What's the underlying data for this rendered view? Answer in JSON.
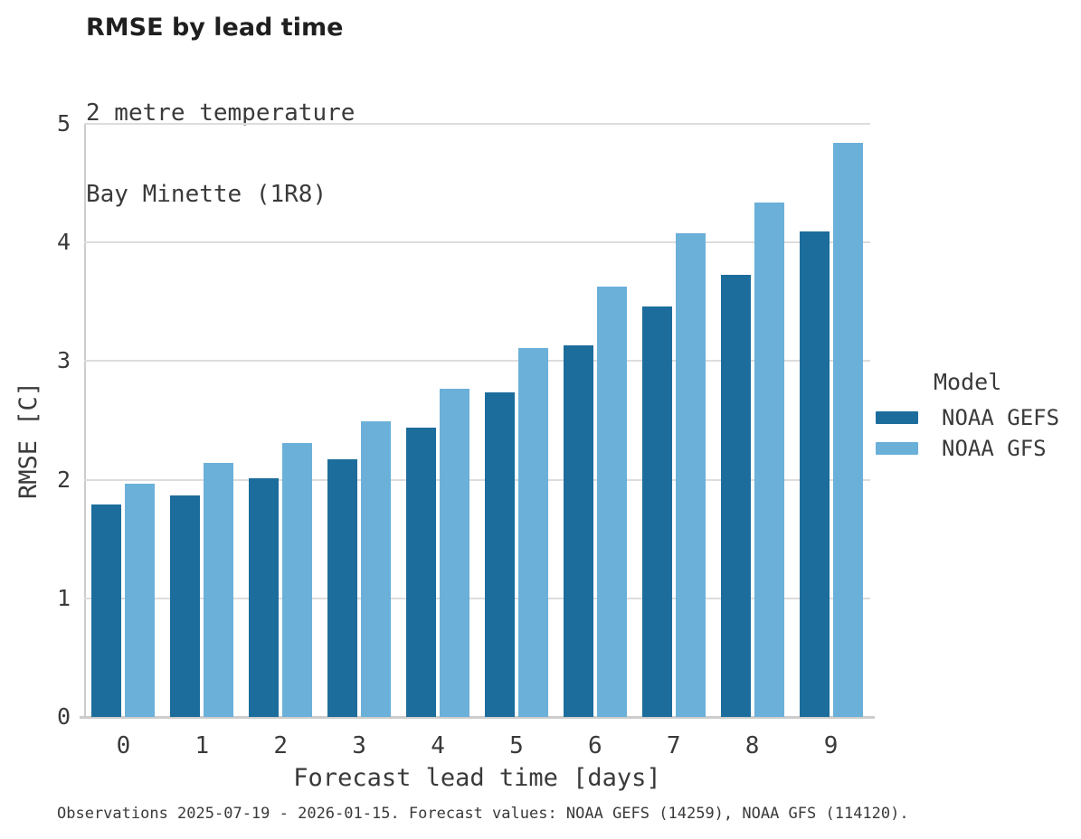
{
  "title": "RMSE by lead time",
  "subtitle_lines": [
    "2 metre temperature",
    "Bay Minette (1R8)"
  ],
  "footer": "Observations 2025-07-19 - 2026-01-15. Forecast values: NOAA GEFS (14259), NOAA GFS (114120).",
  "colors": {
    "gefs_dark_blue": "#1c6d9c",
    "gfs_light_blue": "#6bb0d9",
    "gridline_gray": "#dcdcdc",
    "axis_gray": "#cccccc",
    "text_gray": "#3a3a3a",
    "title_black": "#1f1f1f",
    "background": "#ffffff"
  },
  "legend": {
    "title": "Model",
    "entries": [
      {
        "label": "NOAA GEFS",
        "color": "#1c6d9c"
      },
      {
        "label": "NOAA GFS",
        "color": "#6bb0d9"
      }
    ]
  },
  "chart_data": {
    "type": "bar",
    "title": "RMSE by lead time",
    "subtitle": "2 metre temperature | Bay Minette (1R8)",
    "xlabel": "Forecast lead time [days]",
    "ylabel": "RMSE [C]",
    "categories": [
      "0",
      "1",
      "2",
      "3",
      "4",
      "5",
      "6",
      "7",
      "8",
      "9"
    ],
    "series": [
      {
        "name": "NOAA GEFS",
        "color": "#1c6d9c",
        "values": [
          1.79,
          1.87,
          2.01,
          2.17,
          2.44,
          2.74,
          3.13,
          3.46,
          3.73,
          4.09
        ]
      },
      {
        "name": "NOAA GFS",
        "color": "#6bb0d9",
        "values": [
          1.97,
          2.14,
          2.31,
          2.49,
          2.77,
          3.11,
          3.63,
          4.08,
          4.34,
          4.84
        ]
      }
    ],
    "ylim": [
      0,
      5
    ],
    "yticks": [
      0,
      1,
      2,
      3,
      4,
      5
    ],
    "grid": true,
    "legend_title": "Model",
    "legend_position": "right"
  }
}
